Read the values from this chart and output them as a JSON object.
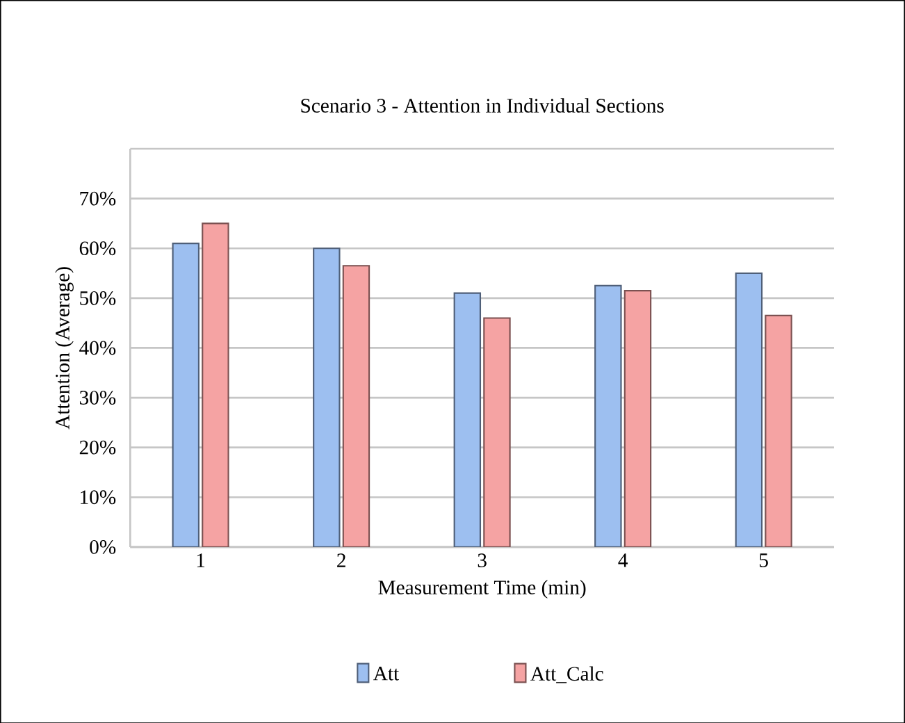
{
  "chart_data": {
    "type": "bar",
    "title": "Scenario 3 - Attention in Individual Sections",
    "xlabel": "Measurement Time (min)",
    "ylabel": "Attention (Average)",
    "categories": [
      "1",
      "2",
      "3",
      "4",
      "5"
    ],
    "series": [
      {
        "name": "Att",
        "color": "#9dbff0",
        "values": [
          61,
          60,
          51,
          52.5,
          55
        ]
      },
      {
        "name": "Att_Calc",
        "color": "#f5a3a3",
        "values": [
          65,
          56.5,
          46,
          51.5,
          46.5
        ]
      }
    ],
    "ylim": [
      0,
      80
    ],
    "yticks": [
      {
        "value": 0,
        "label": "0%"
      },
      {
        "value": 10,
        "label": "10%"
      },
      {
        "value": 20,
        "label": "20%"
      },
      {
        "value": 30,
        "label": "30%"
      },
      {
        "value": 40,
        "label": "40%"
      },
      {
        "value": 50,
        "label": "50%"
      },
      {
        "value": 60,
        "label": "60%"
      },
      {
        "value": 70,
        "label": "70%"
      },
      {
        "value": 80,
        "label": null
      }
    ],
    "grid": "y",
    "legend": "bottom"
  }
}
